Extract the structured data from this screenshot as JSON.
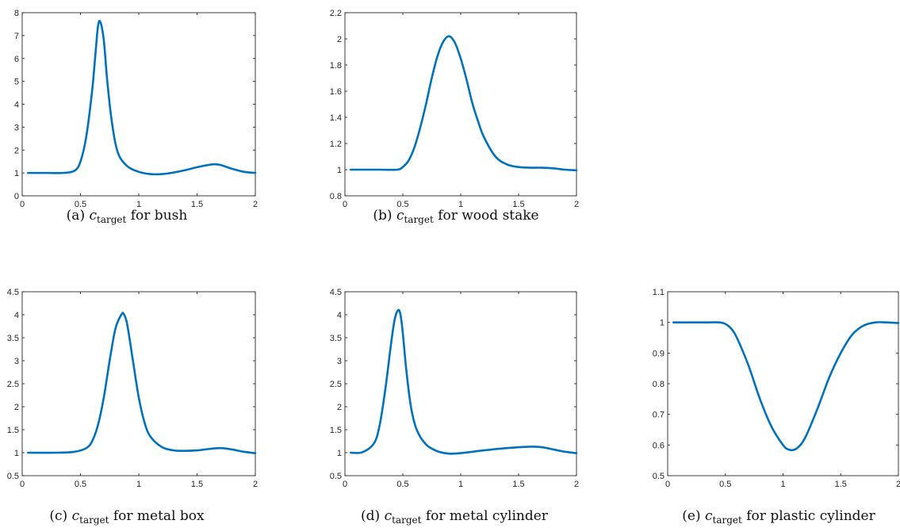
{
  "chart_data": [
    {
      "type": "line",
      "caption": {
        "label": "(a)",
        "symbol": "c",
        "subscript": "target",
        "text": "for bush"
      },
      "xlim": [
        0,
        2
      ],
      "ylim": [
        0,
        8
      ],
      "xticks": [
        "0",
        "0.5",
        "1",
        "1.5",
        "2"
      ],
      "yticks": [
        "0",
        "1",
        "2",
        "3",
        "4",
        "5",
        "6",
        "7",
        "8"
      ],
      "xtick_values": [
        0,
        0.5,
        1,
        1.5,
        2
      ],
      "ytick_values": [
        0,
        1,
        2,
        3,
        4,
        5,
        6,
        7,
        8
      ],
      "series": [
        {
          "x": [
            0.05,
            0.2,
            0.35,
            0.45,
            0.5,
            0.55,
            0.6,
            0.63,
            0.65,
            0.67,
            0.7,
            0.73,
            0.77,
            0.82,
            0.9,
            1.0,
            1.1,
            1.2,
            1.3,
            1.4,
            1.5,
            1.6,
            1.65,
            1.7,
            1.8,
            1.9,
            2.0
          ],
          "y": [
            1.0,
            1.0,
            1.0,
            1.1,
            1.5,
            2.6,
            4.6,
            6.3,
            7.4,
            7.6,
            6.8,
            5.0,
            3.2,
            1.9,
            1.3,
            1.05,
            0.95,
            0.95,
            1.02,
            1.12,
            1.25,
            1.35,
            1.38,
            1.35,
            1.18,
            1.05,
            1.0
          ]
        }
      ]
    },
    {
      "type": "line",
      "caption": {
        "label": "(b)",
        "symbol": "c",
        "subscript": "target",
        "text": "for wood stake"
      },
      "xlim": [
        0,
        2
      ],
      "ylim": [
        0.8,
        2.2
      ],
      "xticks": [
        "0",
        "0.5",
        "1",
        "1.5",
        "2"
      ],
      "yticks": [
        "0.8",
        "1",
        "1.2",
        "1.4",
        "1.6",
        "1.8",
        "2",
        "2.2"
      ],
      "xtick_values": [
        0,
        0.5,
        1,
        1.5,
        2
      ],
      "ytick_values": [
        0.8,
        1,
        1.2,
        1.4,
        1.6,
        1.8,
        2,
        2.2
      ],
      "series": [
        {
          "x": [
            0.05,
            0.3,
            0.45,
            0.5,
            0.55,
            0.6,
            0.65,
            0.7,
            0.75,
            0.8,
            0.85,
            0.9,
            0.95,
            1.0,
            1.05,
            1.1,
            1.15,
            1.2,
            1.3,
            1.4,
            1.5,
            1.6,
            1.7,
            1.8,
            1.9,
            2.0
          ],
          "y": [
            1.0,
            1.0,
            1.0,
            1.02,
            1.07,
            1.17,
            1.32,
            1.5,
            1.7,
            1.87,
            1.98,
            2.02,
            1.97,
            1.85,
            1.69,
            1.51,
            1.37,
            1.25,
            1.1,
            1.04,
            1.02,
            1.015,
            1.015,
            1.01,
            1.0,
            0.995
          ]
        }
      ]
    },
    {
      "type": "line",
      "caption": {
        "label": "(c)",
        "symbol": "c",
        "subscript": "target",
        "text": "for metal box"
      },
      "xlim": [
        0,
        2
      ],
      "ylim": [
        0.5,
        4.5
      ],
      "xticks": [
        "0",
        "0.5",
        "1",
        "1.5",
        "2"
      ],
      "yticks": [
        "0.5",
        "1",
        "1.5",
        "2",
        "2.5",
        "3",
        "3.5",
        "4",
        "4.5"
      ],
      "xtick_values": [
        0,
        0.5,
        1,
        1.5,
        2
      ],
      "ytick_values": [
        0.5,
        1,
        1.5,
        2,
        2.5,
        3,
        3.5,
        4,
        4.5
      ],
      "series": [
        {
          "x": [
            0.05,
            0.3,
            0.45,
            0.55,
            0.6,
            0.65,
            0.7,
            0.75,
            0.8,
            0.85,
            0.87,
            0.9,
            0.95,
            1.0,
            1.05,
            1.1,
            1.2,
            1.3,
            1.4,
            1.5,
            1.6,
            1.7,
            1.8,
            1.9,
            2.0
          ],
          "y": [
            1.0,
            1.0,
            1.02,
            1.1,
            1.25,
            1.6,
            2.2,
            3.0,
            3.7,
            4.0,
            4.02,
            3.8,
            3.0,
            2.2,
            1.65,
            1.35,
            1.12,
            1.05,
            1.04,
            1.05,
            1.08,
            1.1,
            1.07,
            1.02,
            0.99
          ]
        }
      ]
    },
    {
      "type": "line",
      "caption": {
        "label": "(d)",
        "symbol": "c",
        "subscript": "target",
        "text": "for metal cylinder"
      },
      "xlim": [
        0,
        2
      ],
      "ylim": [
        0.5,
        4.5
      ],
      "xticks": [
        "0",
        "0.5",
        "1",
        "1.5",
        "2"
      ],
      "yticks": [
        "0.5",
        "1",
        "1.5",
        "2",
        "2.5",
        "3",
        "3.5",
        "4",
        "4.5"
      ],
      "xtick_values": [
        0,
        0.5,
        1,
        1.5,
        2
      ],
      "ytick_values": [
        0.5,
        1,
        1.5,
        2,
        2.5,
        3,
        3.5,
        4,
        4.5
      ],
      "series": [
        {
          "x": [
            0.05,
            0.15,
            0.25,
            0.3,
            0.35,
            0.4,
            0.43,
            0.46,
            0.48,
            0.5,
            0.53,
            0.57,
            0.62,
            0.7,
            0.8,
            0.9,
            1.0,
            1.2,
            1.4,
            1.6,
            1.7,
            1.8,
            1.9,
            2.0
          ],
          "y": [
            1.0,
            1.01,
            1.2,
            1.6,
            2.4,
            3.4,
            3.9,
            4.1,
            4.0,
            3.6,
            2.8,
            2.0,
            1.5,
            1.18,
            1.03,
            0.98,
            0.99,
            1.05,
            1.1,
            1.13,
            1.12,
            1.07,
            1.02,
            0.99
          ]
        }
      ]
    },
    {
      "type": "line",
      "caption": {
        "label": "(e)",
        "symbol": "c",
        "subscript": "target",
        "text": "for plastic cylinder"
      },
      "xlim": [
        0,
        2
      ],
      "ylim": [
        0.5,
        1.1
      ],
      "xticks": [
        "0",
        "0.5",
        "1",
        "1.5",
        "2"
      ],
      "yticks": [
        "0.5",
        "0.6",
        "0.7",
        "0.8",
        "0.9",
        "1",
        "1.1"
      ],
      "xtick_values": [
        0,
        0.5,
        1,
        1.5,
        2
      ],
      "ytick_values": [
        0.5,
        0.6,
        0.7,
        0.8,
        0.9,
        1,
        1.1
      ],
      "series": [
        {
          "x": [
            0.05,
            0.2,
            0.35,
            0.45,
            0.5,
            0.55,
            0.6,
            0.7,
            0.8,
            0.9,
            1.0,
            1.05,
            1.1,
            1.15,
            1.2,
            1.3,
            1.4,
            1.5,
            1.6,
            1.7,
            1.8,
            1.9,
            2.0
          ],
          "y": [
            1.0,
            1.0,
            1.0,
            1.0,
            0.995,
            0.98,
            0.95,
            0.86,
            0.75,
            0.66,
            0.6,
            0.585,
            0.585,
            0.6,
            0.63,
            0.72,
            0.82,
            0.9,
            0.96,
            0.99,
            1.0,
            1.0,
            0.998
          ]
        }
      ]
    }
  ]
}
